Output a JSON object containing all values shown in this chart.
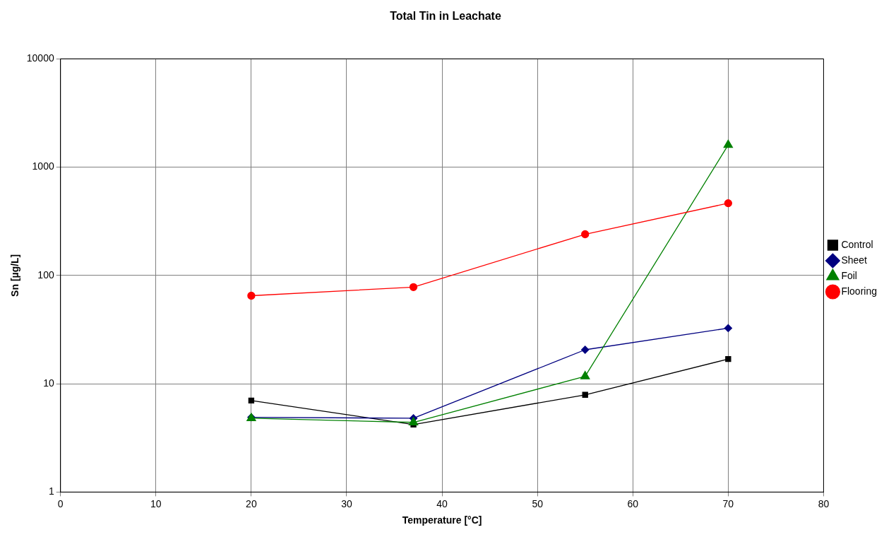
{
  "chart_data": {
    "type": "line",
    "title": "Total Tin in Leachate",
    "xlabel": "Temperature [°C]",
    "ylabel": "Sn [µg/L]",
    "x": [
      20,
      37,
      55,
      70
    ],
    "series": [
      {
        "name": "Control",
        "color": "#000000",
        "marker": "square",
        "values": [
          7.0,
          4.2,
          7.9,
          16.9
        ]
      },
      {
        "name": "Sheet",
        "color": "#000080",
        "marker": "diamond",
        "values": [
          4.9,
          4.8,
          20.6,
          32.6
        ]
      },
      {
        "name": "Foil",
        "color": "#008000",
        "marker": "triangle",
        "values": [
          4.8,
          4.4,
          11.7,
          1600
        ]
      },
      {
        "name": "Flooring",
        "color": "#ff0000",
        "marker": "circle",
        "values": [
          65,
          78,
          240,
          464
        ]
      }
    ],
    "xlim": [
      0,
      80
    ],
    "xticks": [
      0,
      10,
      20,
      30,
      40,
      50,
      60,
      70,
      80
    ],
    "ylim": [
      1,
      10000
    ],
    "yticks": [
      1,
      10,
      100,
      1000,
      10000
    ],
    "log": "y",
    "grid": true,
    "legend": "right",
    "line_style": "solid"
  }
}
